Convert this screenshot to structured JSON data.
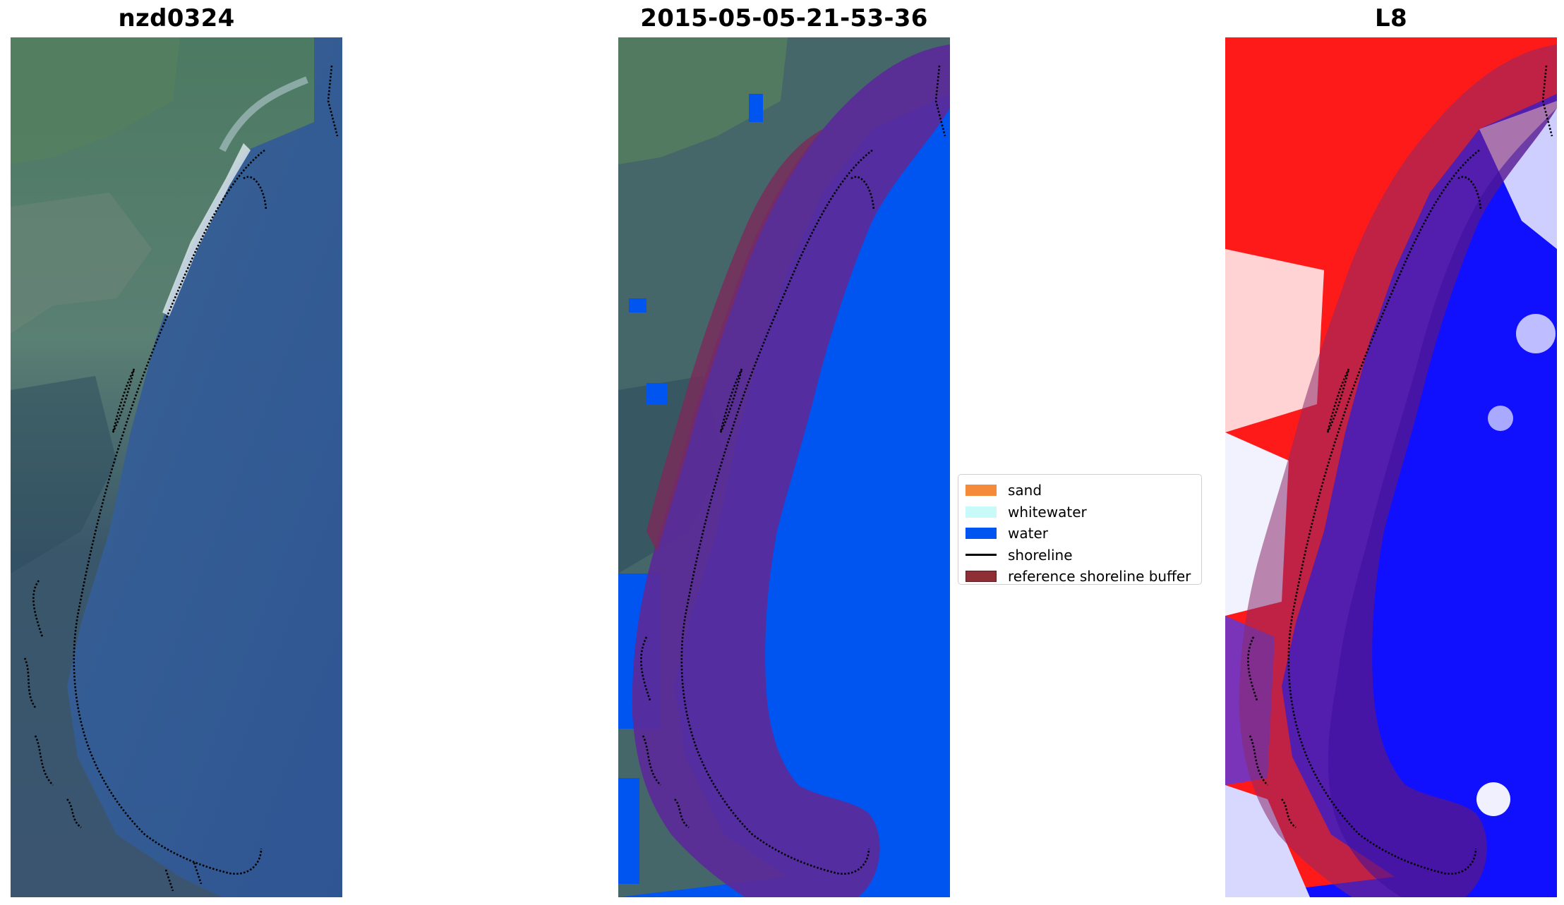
{
  "panels": {
    "rgb": {
      "title": "nzd0324"
    },
    "classified": {
      "title": "2015-05-05-21-53-36"
    },
    "index": {
      "title": "L8"
    }
  },
  "legend": {
    "items": [
      {
        "label": "sand",
        "color": "#f58a3a",
        "kind": "patch"
      },
      {
        "label": "whitewater",
        "color": "#c9fafa",
        "kind": "patch"
      },
      {
        "label": "water",
        "color": "#0055f0",
        "kind": "patch"
      },
      {
        "label": "shoreline",
        "color": "#000000",
        "kind": "line"
      },
      {
        "label": "reference shoreline buffer",
        "color": "#8e2f36",
        "kind": "patch-outline"
      }
    ]
  },
  "colors": {
    "land_dark": "#3f5e68",
    "land_green": "#4d7a60",
    "ocean_rgb": "#3c5f93",
    "water_class": "#0055f0",
    "buffer": "#7a2a5a",
    "index_land": "#ff1a1a",
    "index_water": "#1010ff"
  }
}
